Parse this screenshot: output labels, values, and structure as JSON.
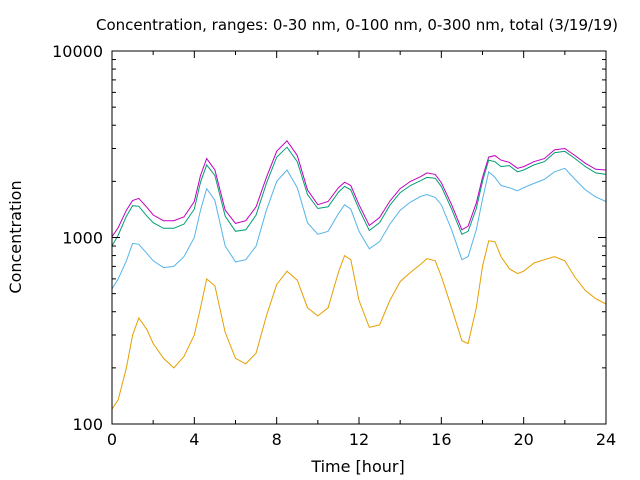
{
  "chart_data": {
    "type": "line",
    "title": "Concentration, ranges: 0-30 nm, 0-100 nm, 0-300 nm, total (3/19/19)",
    "xlabel": "Time [hour]",
    "ylabel": "Concentration",
    "xlim": [
      0,
      24
    ],
    "ylim": [
      100,
      10000
    ],
    "y_scale": "log",
    "grid": false,
    "legend": "none",
    "x_ticks": [
      0,
      4,
      8,
      12,
      16,
      20,
      24
    ],
    "x_tick_labels": [
      "0",
      "4",
      "8",
      "12",
      "16",
      "20",
      "24"
    ],
    "y_ticks": [
      100,
      1000,
      10000
    ],
    "y_tick_labels": [
      "100",
      "1000",
      "10000"
    ],
    "x": [
      0,
      0.3,
      0.7,
      1.0,
      1.3,
      1.7,
      2.0,
      2.5,
      3.0,
      3.5,
      4.0,
      4.3,
      4.6,
      5.0,
      5.5,
      6.0,
      6.5,
      7.0,
      7.5,
      8.0,
      8.5,
      9.0,
      9.5,
      10.0,
      10.5,
      11.0,
      11.3,
      11.6,
      12.0,
      12.5,
      13.0,
      13.5,
      14.0,
      14.5,
      15.0,
      15.3,
      15.7,
      16.0,
      16.5,
      17.0,
      17.3,
      17.7,
      18.0,
      18.3,
      18.6,
      18.9,
      19.3,
      19.7,
      20.0,
      20.5,
      21.0,
      21.5,
      22.0,
      22.5,
      23.0,
      23.5,
      24.0
    ],
    "series": [
      {
        "color": "#c000c0",
        "values": [
          1010,
          1130,
          1400,
          1580,
          1620,
          1450,
          1320,
          1230,
          1230,
          1290,
          1560,
          2150,
          2650,
          2300,
          1400,
          1190,
          1230,
          1460,
          2100,
          2900,
          3300,
          2750,
          1800,
          1500,
          1560,
          1850,
          1980,
          1900,
          1500,
          1160,
          1280,
          1570,
          1830,
          2000,
          2120,
          2220,
          2180,
          1970,
          1500,
          1100,
          1150,
          1530,
          2100,
          2700,
          2750,
          2600,
          2530,
          2350,
          2400,
          2550,
          2650,
          2950,
          3000,
          2750,
          2500,
          2320,
          2300
        ]
      },
      {
        "color": "#009e73",
        "values": [
          900,
          1030,
          1300,
          1480,
          1470,
          1300,
          1200,
          1120,
          1120,
          1180,
          1420,
          1980,
          2450,
          2150,
          1300,
          1080,
          1100,
          1320,
          1950,
          2700,
          3050,
          2550,
          1700,
          1430,
          1460,
          1750,
          1880,
          1800,
          1420,
          1090,
          1200,
          1490,
          1740,
          1900,
          2020,
          2100,
          2080,
          1880,
          1420,
          1040,
          1080,
          1430,
          2000,
          2600,
          2550,
          2400,
          2430,
          2250,
          2300,
          2450,
          2550,
          2850,
          2900,
          2650,
          2400,
          2220,
          2180
        ]
      },
      {
        "color": "#56b4e9",
        "values": [
          530,
          600,
          750,
          930,
          920,
          820,
          750,
          690,
          700,
          790,
          1000,
          1400,
          1830,
          1580,
          900,
          740,
          760,
          900,
          1400,
          2000,
          2300,
          1850,
          1200,
          1040,
          1080,
          1340,
          1500,
          1420,
          1080,
          870,
          950,
          1180,
          1400,
          1550,
          1660,
          1700,
          1640,
          1500,
          1100,
          760,
          790,
          1100,
          1600,
          2250,
          2100,
          1900,
          1850,
          1780,
          1850,
          1950,
          2050,
          2250,
          2350,
          2050,
          1800,
          1650,
          1560
        ]
      },
      {
        "color": "#e69f00",
        "values": [
          120,
          135,
          200,
          300,
          370,
          320,
          270,
          225,
          200,
          230,
          300,
          420,
          600,
          550,
          310,
          225,
          210,
          240,
          380,
          560,
          660,
          590,
          420,
          380,
          420,
          650,
          800,
          760,
          460,
          330,
          340,
          460,
          580,
          650,
          720,
          770,
          750,
          620,
          420,
          280,
          270,
          420,
          700,
          960,
          950,
          790,
          680,
          640,
          660,
          730,
          760,
          790,
          750,
          610,
          520,
          470,
          440
        ]
      }
    ]
  }
}
